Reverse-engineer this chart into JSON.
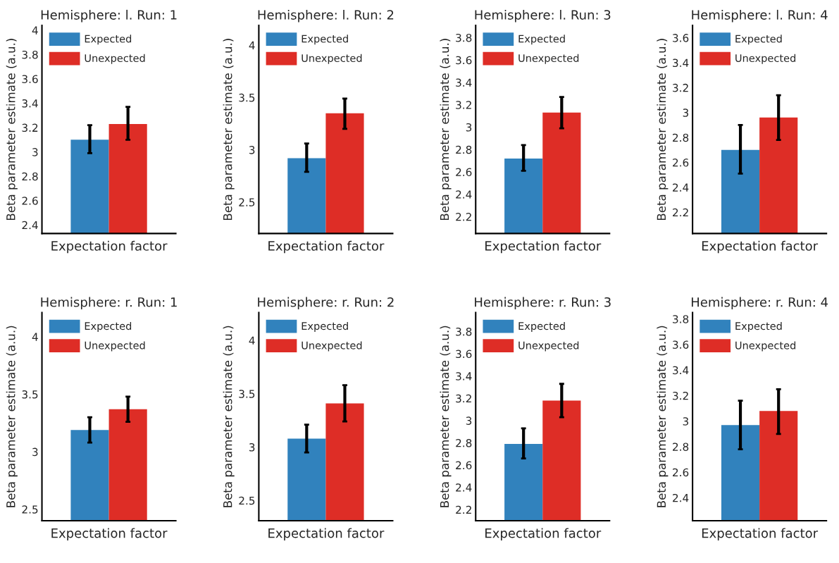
{
  "chart_data": [
    {
      "type": "bar",
      "title": "Hemisphere: l. Run: 1",
      "xlabel": "Expectation factor",
      "ylabel": "Beta parameter estimate (a.u.)",
      "categories": [
        null
      ],
      "legend": "top left",
      "grid": false,
      "ylim": [
        2.33,
        4.04
      ],
      "yticks": [
        2.4,
        2.6,
        2.8,
        3,
        3.2,
        3.4,
        3.6,
        3.8,
        4
      ],
      "series": [
        {
          "name": "Expected",
          "color": "#3182bd",
          "values": [
            3.1
          ],
          "errors": [
            [
              2.99,
              3.22
            ]
          ]
        },
        {
          "name": "Unexpected",
          "color": "#de2d26",
          "values": [
            3.23
          ],
          "errors": [
            [
              3.1,
              3.37
            ]
          ]
        }
      ]
    },
    {
      "type": "bar",
      "title": "Hemisphere: l. Run: 2",
      "xlabel": "Expectation factor",
      "ylabel": "Beta parameter estimate (a.u.)",
      "categories": [
        null
      ],
      "legend": "top left",
      "grid": false,
      "ylim": [
        2.2,
        4.19
      ],
      "yticks": [
        2.5,
        3,
        3.5,
        4
      ],
      "series": [
        {
          "name": "Expected",
          "color": "#3182bd",
          "values": [
            2.92
          ],
          "errors": [
            [
              2.79,
              3.06
            ]
          ]
        },
        {
          "name": "Unexpected",
          "color": "#de2d26",
          "values": [
            3.35
          ],
          "errors": [
            [
              3.2,
              3.49
            ]
          ]
        }
      ]
    },
    {
      "type": "bar",
      "title": "Hemisphere: l. Run: 3",
      "xlabel": "Expectation factor",
      "ylabel": "Beta parameter estimate (a.u.)",
      "categories": [
        null
      ],
      "legend": "top left",
      "grid": false,
      "ylim": [
        2.05,
        3.91
      ],
      "yticks": [
        2.2,
        2.4,
        2.6,
        2.8,
        3,
        3.2,
        3.4,
        3.6,
        3.8
      ],
      "series": [
        {
          "name": "Expected",
          "color": "#3182bd",
          "values": [
            2.72
          ],
          "errors": [
            [
              2.61,
              2.84
            ]
          ]
        },
        {
          "name": "Unexpected",
          "color": "#de2d26",
          "values": [
            3.13
          ],
          "errors": [
            [
              2.99,
              3.27
            ]
          ]
        }
      ]
    },
    {
      "type": "bar",
      "title": "Hemisphere: l. Run: 4",
      "xlabel": "Expectation factor",
      "ylabel": "Beta parameter estimate (a.u.)",
      "categories": [
        null
      ],
      "legend": "top left",
      "grid": false,
      "ylim": [
        2.03,
        3.7
      ],
      "yticks": [
        2.2,
        2.4,
        2.6,
        2.8,
        3,
        3.2,
        3.4,
        3.6
      ],
      "series": [
        {
          "name": "Expected",
          "color": "#3182bd",
          "values": [
            2.7
          ],
          "errors": [
            [
              2.51,
              2.9
            ]
          ]
        },
        {
          "name": "Unexpected",
          "color": "#de2d26",
          "values": [
            2.96
          ],
          "errors": [
            [
              2.78,
              3.14
            ]
          ]
        }
      ]
    },
    {
      "type": "bar",
      "title": "Hemisphere: r. Run: 1",
      "xlabel": "Expectation factor",
      "ylabel": "Beta parameter estimate (a.u.)",
      "categories": [
        null
      ],
      "legend": "top left",
      "grid": false,
      "ylim": [
        2.4,
        4.21
      ],
      "yticks": [
        2.5,
        3,
        3.5,
        4
      ],
      "series": [
        {
          "name": "Expected",
          "color": "#3182bd",
          "values": [
            3.19
          ],
          "errors": [
            [
              3.08,
              3.3
            ]
          ]
        },
        {
          "name": "Unexpected",
          "color": "#de2d26",
          "values": [
            3.37
          ],
          "errors": [
            [
              3.26,
              3.48
            ]
          ]
        }
      ]
    },
    {
      "type": "bar",
      "title": "Hemisphere: r. Run: 2",
      "xlabel": "Expectation factor",
      "ylabel": "Beta parameter estimate (a.u.)",
      "categories": [
        null
      ],
      "legend": "top left",
      "grid": false,
      "ylim": [
        2.31,
        4.26
      ],
      "yticks": [
        2.5,
        3,
        3.5,
        4
      ],
      "series": [
        {
          "name": "Expected",
          "color": "#3182bd",
          "values": [
            3.08
          ],
          "errors": [
            [
              2.95,
              3.21
            ]
          ]
        },
        {
          "name": "Unexpected",
          "color": "#de2d26",
          "values": [
            3.41
          ],
          "errors": [
            [
              3.24,
              3.58
            ]
          ]
        }
      ]
    },
    {
      "type": "bar",
      "title": "Hemisphere: r. Run: 3",
      "xlabel": "Expectation factor",
      "ylabel": "Beta parameter estimate (a.u.)",
      "categories": [
        null
      ],
      "legend": "top left",
      "grid": false,
      "ylim": [
        2.1,
        3.97
      ],
      "yticks": [
        2.2,
        2.4,
        2.6,
        2.8,
        3,
        3.2,
        3.4,
        3.6,
        3.8
      ],
      "series": [
        {
          "name": "Expected",
          "color": "#3182bd",
          "values": [
            2.79
          ],
          "errors": [
            [
              2.66,
              2.93
            ]
          ]
        },
        {
          "name": "Unexpected",
          "color": "#de2d26",
          "values": [
            3.18
          ],
          "errors": [
            [
              3.03,
              3.33
            ]
          ]
        }
      ]
    },
    {
      "type": "bar",
      "title": "Hemisphere: r. Run: 4",
      "xlabel": "Expectation factor",
      "ylabel": "Beta parameter estimate (a.u.)",
      "categories": [
        null
      ],
      "legend": "top left",
      "grid": false,
      "ylim": [
        2.22,
        3.85
      ],
      "yticks": [
        2.4,
        2.6,
        2.8,
        3,
        3.2,
        3.4,
        3.6,
        3.8
      ],
      "series": [
        {
          "name": "Expected",
          "color": "#3182bd",
          "values": [
            2.97
          ],
          "errors": [
            [
              2.78,
              3.16
            ]
          ]
        },
        {
          "name": "Unexpected",
          "color": "#de2d26",
          "values": [
            3.08
          ],
          "errors": [
            [
              2.9,
              3.25
            ]
          ]
        }
      ]
    }
  ]
}
